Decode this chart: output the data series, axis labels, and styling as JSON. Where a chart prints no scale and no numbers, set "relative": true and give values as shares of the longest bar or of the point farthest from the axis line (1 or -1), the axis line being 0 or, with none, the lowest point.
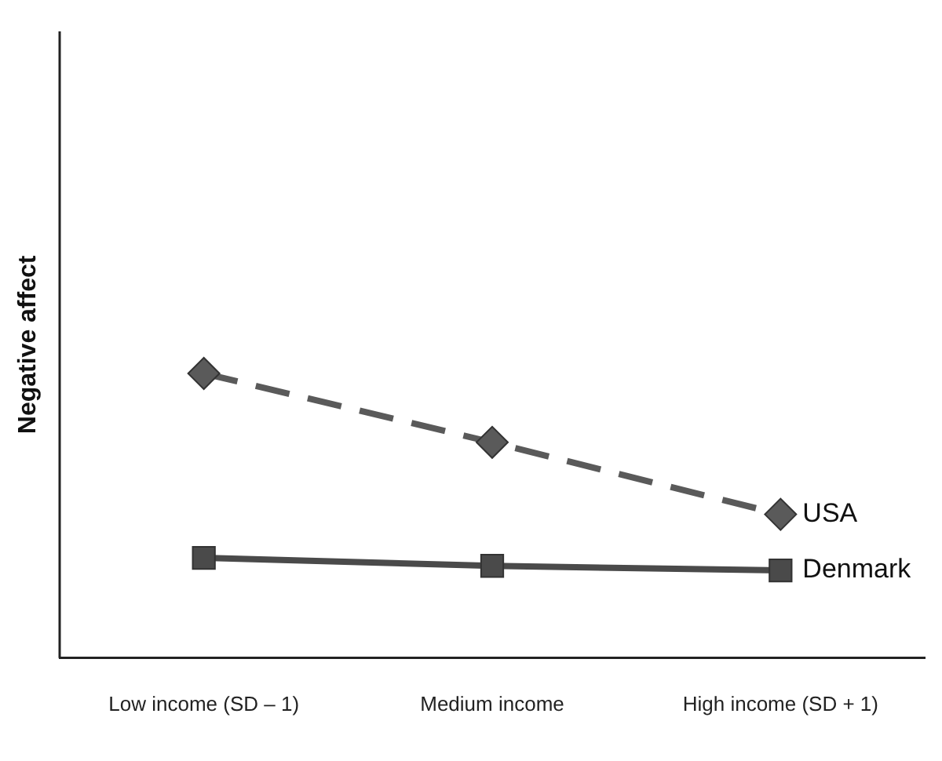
{
  "chart_data": {
    "type": "line",
    "ylabel": "Negative affect",
    "relative": true,
    "legend": false,
    "grid": false,
    "categories": [
      "Low income (SD – 1)",
      "Medium income",
      "High income (SD + 1)"
    ],
    "series": [
      {
        "name": "USA",
        "color": "#5a5a5a",
        "values": [
          1,
          0.758,
          0.505
        ],
        "marker": "diamond",
        "line_style": "dashed"
      },
      {
        "name": "Denmark",
        "color": "#4a4a4a",
        "values": [
          0.352,
          0.324,
          0.308
        ],
        "marker": "square",
        "line_style": "solid"
      }
    ]
  }
}
